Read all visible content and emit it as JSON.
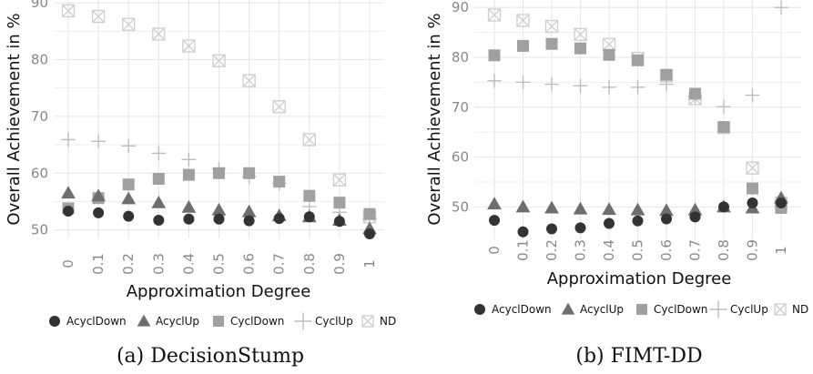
{
  "colors": {
    "panel_background": "#ffffff",
    "grid": "#e6e6e6",
    "tick_text": "#888888",
    "AcyclDown": "#333333",
    "AcyclUp": "#6e6e6e",
    "CyclDown": "#a0a0a0",
    "CyclUp": "#bdbdbd",
    "ND": "#d0d0d0"
  },
  "legend": [
    {
      "label": "AcyclDown",
      "shape": "circle"
    },
    {
      "label": "AcyclUp",
      "shape": "triangle"
    },
    {
      "label": "CyclDown",
      "shape": "square"
    },
    {
      "label": "CyclUp",
      "shape": "plus"
    },
    {
      "label": "ND",
      "shape": "crossed-square"
    }
  ],
  "chart_data": [
    {
      "type": "scatter",
      "caption": "(a) DecisionStump",
      "xlabel": "Approximation Degree",
      "ylabel": "Overall Achievement in %",
      "x_tick_labels": [
        "0",
        "0.1",
        "0.2",
        "0.3",
        "0.4",
        "0.5",
        "0.6",
        "0.7",
        "0.8",
        "0.9",
        "1"
      ],
      "x": [
        0,
        0.1,
        0.2,
        0.3,
        0.4,
        0.5,
        0.6,
        0.7,
        0.8,
        0.9,
        1
      ],
      "y_ticks": [
        50,
        60,
        70,
        80,
        90
      ],
      "y_tick_labels": [
        "50",
        "60",
        "70",
        "80",
        "90"
      ],
      "ylim": [
        48.5,
        90.5
      ],
      "grid": true,
      "legend_position": "bottom",
      "series": [
        {
          "name": "AcyclDown",
          "values": [
            53.3,
            53.0,
            52.4,
            51.7,
            51.9,
            51.9,
            51.6,
            52.0,
            52.3,
            51.5,
            49.3
          ]
        },
        {
          "name": "AcyclUp",
          "values": [
            56.5,
            56.0,
            55.5,
            54.8,
            54.0,
            53.5,
            53.2,
            52.5,
            52.3,
            51.7,
            50.2
          ]
        },
        {
          "name": "CyclDown",
          "values": [
            53.8,
            55.6,
            58.0,
            59.0,
            59.7,
            60.0,
            60.0,
            58.5,
            56.0,
            54.8,
            52.8
          ]
        },
        {
          "name": "CyclUp",
          "values": [
            65.9,
            65.6,
            64.8,
            63.5,
            62.4,
            60.8,
            59.4,
            58.2,
            54.1,
            53.1,
            52.0
          ]
        },
        {
          "name": "ND",
          "values": [
            88.6,
            87.6,
            86.2,
            84.5,
            82.4,
            79.8,
            76.3,
            71.7,
            65.9,
            58.8,
            52.3
          ]
        }
      ]
    },
    {
      "type": "scatter",
      "caption": "(b) FIMT-DD",
      "xlabel": "Approximation Degree",
      "ylabel": "Overall Achievement in %",
      "x_tick_labels": [
        "0",
        "0.1",
        "0.2",
        "0.3",
        "0.4",
        "0.5",
        "0.6",
        "0.7",
        "0.8",
        "0.9",
        "1"
      ],
      "x": [
        0,
        0.1,
        0.2,
        0.3,
        0.4,
        0.5,
        0.6,
        0.7,
        0.8,
        0.9,
        1
      ],
      "y_ticks": [
        50,
        60,
        70,
        80,
        90
      ],
      "y_tick_labels": [
        "50",
        "60",
        "70",
        "80",
        "90"
      ],
      "ylim": [
        43.5,
        91.5
      ],
      "grid": true,
      "legend_position": "bottom",
      "series": [
        {
          "name": "AcyclDown",
          "values": [
            47.3,
            45.0,
            45.6,
            45.8,
            46.7,
            47.2,
            47.6,
            48.0,
            50.0,
            50.8,
            50.8
          ]
        },
        {
          "name": "AcyclUp",
          "values": [
            50.6,
            50.0,
            49.8,
            49.6,
            49.5,
            49.4,
            49.3,
            49.4,
            50.0,
            49.8,
            51.8
          ]
        },
        {
          "name": "CyclDown",
          "values": [
            80.4,
            82.3,
            82.7,
            81.8,
            80.5,
            79.4,
            76.5,
            72.7,
            66.0,
            53.7,
            49.8
          ]
        },
        {
          "name": "CyclUp",
          "values": [
            75.3,
            75.0,
            74.6,
            74.3,
            74.0,
            74.0,
            74.6,
            72.1,
            70.1,
            72.4,
            90.0
          ]
        },
        {
          "name": "ND",
          "values": [
            88.5,
            87.4,
            86.2,
            84.6,
            82.6,
            79.8,
            76.3,
            71.7,
            65.9,
            57.8,
            50.8
          ]
        }
      ]
    }
  ]
}
